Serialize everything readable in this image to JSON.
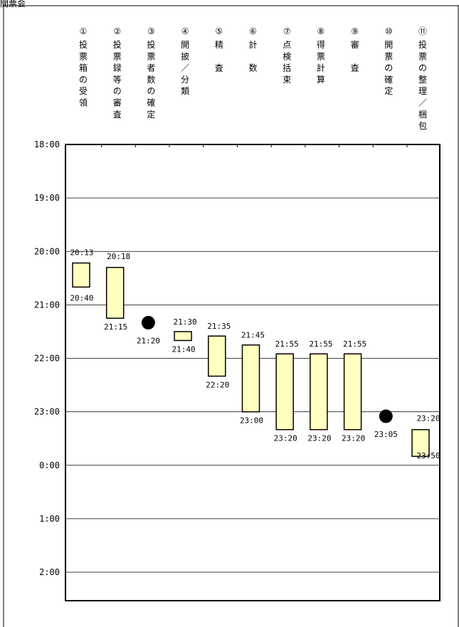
{
  "corner_label": "開票会",
  "chart_data": {
    "type": "gantt",
    "title": "",
    "y_axis": {
      "range": [
        "18:00",
        "02:00"
      ],
      "ticks": [
        "18:00",
        "19:00",
        "20:00",
        "21:00",
        "22:00",
        "23:00",
        "0:00",
        "1:00",
        "2:00"
      ],
      "grid": true
    },
    "tasks": [
      {
        "number": "①",
        "name": "投票箱の受領",
        "start": "20:13",
        "end": "20:40",
        "kind": "bar"
      },
      {
        "number": "②",
        "name": "投票録等の審査",
        "start": "20:18",
        "end": "21:15",
        "kind": "bar"
      },
      {
        "number": "③",
        "name": "投票者数の確定",
        "start": "21:20",
        "end": "21:20",
        "kind": "point"
      },
      {
        "number": "④",
        "name": "開披／分類",
        "start": "21:30",
        "end": "21:40",
        "kind": "bar"
      },
      {
        "number": "⑤",
        "name": "精　査",
        "start": "21:35",
        "end": "22:20",
        "kind": "bar"
      },
      {
        "number": "⑥",
        "name": "計　数",
        "start": "21:45",
        "end": "23:00",
        "kind": "bar"
      },
      {
        "number": "⑦",
        "name": "点検括束",
        "start": "21:55",
        "end": "23:20",
        "kind": "bar"
      },
      {
        "number": "⑧",
        "name": "得票計算",
        "start": "21:55",
        "end": "23:20",
        "kind": "bar"
      },
      {
        "number": "⑨",
        "name": "審　査",
        "start": "21:55",
        "end": "23:20",
        "kind": "bar"
      },
      {
        "number": "⑩",
        "name": "開票の確定",
        "start": "23:05",
        "end": "23:05",
        "kind": "point"
      },
      {
        "number": "⑪",
        "name": "投票の整理／梱包",
        "start": "23:20",
        "end": "23:50",
        "kind": "bar"
      }
    ],
    "colors": {
      "bar_fill": "#ffffc0",
      "bar_stroke": "#000000",
      "point": "#000000",
      "grid": "#000000"
    }
  }
}
